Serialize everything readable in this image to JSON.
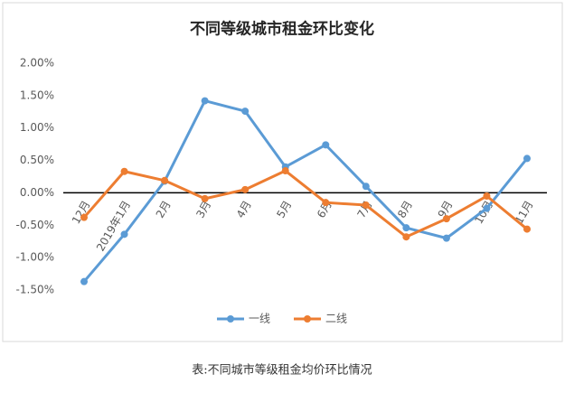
{
  "chart_data": {
    "type": "line",
    "title": "不同等级城市租金环比变化",
    "categories": [
      "12月",
      "2019年1月",
      "2月",
      "3月",
      "4月",
      "5月",
      "6月",
      "7月",
      "8月",
      "9月",
      "10月",
      "11月"
    ],
    "series": [
      {
        "name": "一线",
        "color": "#5b9bd5",
        "values": [
          -1.37,
          -0.64,
          0.18,
          1.42,
          1.26,
          0.4,
          0.74,
          0.1,
          -0.54,
          -0.7,
          -0.24,
          0.53
        ]
      },
      {
        "name": "二线",
        "color": "#ed7d31",
        "values": [
          -0.38,
          0.33,
          0.19,
          -0.09,
          0.05,
          0.34,
          -0.15,
          -0.19,
          -0.68,
          -0.4,
          -0.05,
          -0.56
        ]
      }
    ],
    "ylim": [
      -1.5,
      2
    ],
    "yticks": [
      {
        "value": -1.5,
        "label": "-1.50%"
      },
      {
        "value": -1,
        "label": "-1.00%"
      },
      {
        "value": -0.5,
        "label": "-0.50%"
      },
      {
        "value": 0,
        "label": "0.00%"
      },
      {
        "value": 0.5,
        "label": "0.50%"
      },
      {
        "value": 1,
        "label": "1.00%"
      },
      {
        "value": 1.5,
        "label": "1.50%"
      },
      {
        "value": 2,
        "label": "2.00%"
      }
    ],
    "grid": false,
    "legend": "bottom"
  },
  "caption": "表:不同城市等级租金均价环比情况"
}
